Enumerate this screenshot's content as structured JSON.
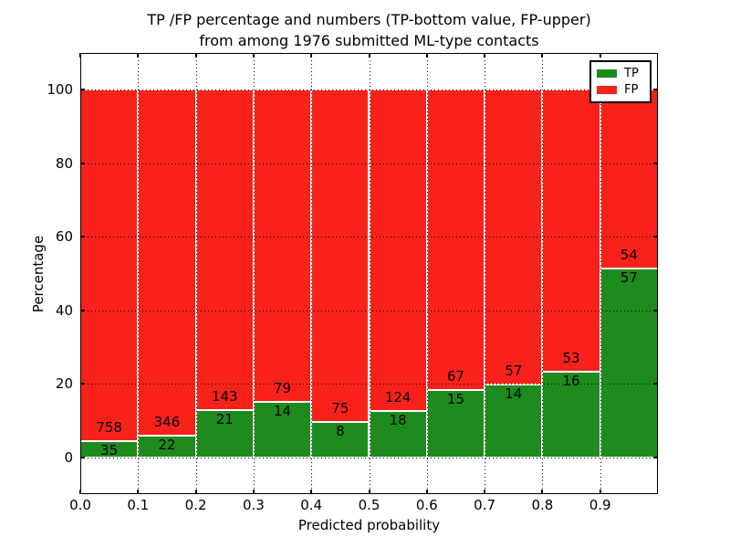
{
  "figure": {
    "title_line1": "TP /FP percentage and numbers (TP-bottom value, FP-upper)",
    "title_line2": "from among 1976 submitted ML-type contacts"
  },
  "chart_data": {
    "type": "bar",
    "stacked": true,
    "normalized_to_percent": 100,
    "title": "TP /FP percentage and numbers (TP-bottom value, FP-upper) from among 1976 submitted ML-type contacts",
    "total_contacts": 1976,
    "xlabel": "Predicted probability",
    "ylabel": "Percentage",
    "xlim": [
      0.0,
      1.0
    ],
    "ylim": [
      -10,
      110
    ],
    "bin_width": 0.1,
    "bin_starts": [
      0.0,
      0.1,
      0.2,
      0.3,
      0.4,
      0.5,
      0.6,
      0.7,
      0.8,
      0.9
    ],
    "xtick_labels": [
      "0.0",
      "0.1",
      "0.2",
      "0.3",
      "0.4",
      "0.5",
      "0.6",
      "0.7",
      "0.8",
      "0.9"
    ],
    "ytick_values": [
      0,
      20,
      40,
      60,
      80,
      100
    ],
    "grid_style": "dotted",
    "grid_on": true,
    "legend_position": "upper right",
    "bar_edge_color": "#ffffff",
    "series": [
      {
        "name": "TP",
        "position": "bottom",
        "color": "#1e8b1e",
        "counts": [
          35,
          22,
          21,
          14,
          8,
          18,
          15,
          14,
          16,
          57
        ]
      },
      {
        "name": "FP",
        "position": "top",
        "color": "#f9221b",
        "counts": [
          758,
          346,
          143,
          79,
          75,
          124,
          67,
          57,
          53,
          54
        ]
      }
    ]
  }
}
